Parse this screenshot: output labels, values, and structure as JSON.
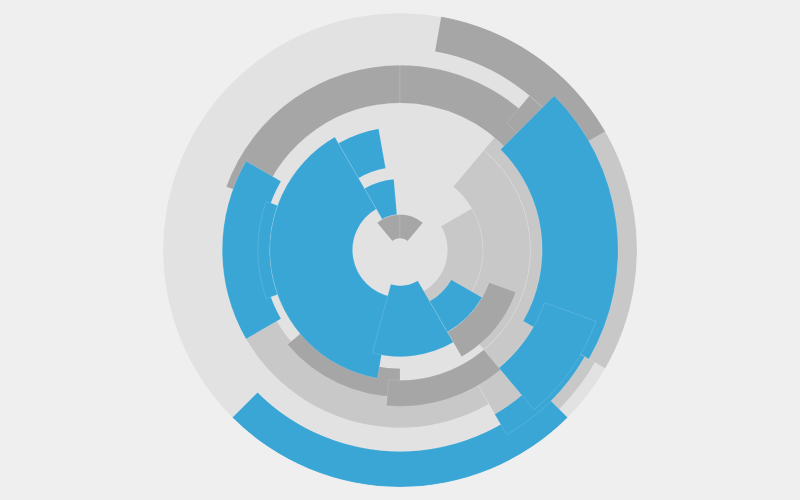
{
  "chart_data": {
    "type": "barpolar",
    "rlim": [
      0,
      1
    ],
    "tick_labels": false,
    "grid": false,
    "series": [
      {
        "color": "#e2e2e2",
        "arcs": [
          [
            0,
            1,
            0,
            360
          ]
        ]
      },
      {
        "color": "#c8c8c8",
        "arcs": [
          [
            0.55,
            0.95,
            40,
            150
          ],
          [
            0.6,
            0.75,
            150,
            260
          ],
          [
            0.35,
            0.55,
            40,
            140
          ],
          [
            0.9,
            1,
            40,
            120
          ],
          [
            0.2,
            0.35,
            60,
            160
          ]
        ]
      },
      {
        "color": "#a6a6a6",
        "arcs": [
          [
            0.62,
            0.78,
            290,
            360
          ],
          [
            0.62,
            0.78,
            0,
            50
          ],
          [
            0.85,
            1,
            10,
            60
          ],
          [
            0.7,
            0.85,
            40,
            70
          ],
          [
            0.5,
            0.62,
            180,
            230
          ],
          [
            0.55,
            0.66,
            140,
            185
          ],
          [
            0.05,
            0.15,
            320,
            360
          ],
          [
            0.05,
            0.15,
            0,
            40
          ],
          [
            0.4,
            0.52,
            110,
            150
          ]
        ]
      },
      {
        "color": "#3aa6d6",
        "arcs": [
          [
            0.85,
            1,
            135,
            225
          ],
          [
            0.8,
            0.9,
            120,
            150
          ],
          [
            0.6,
            0.92,
            45,
            120
          ],
          [
            0.65,
            0.88,
            110,
            140
          ],
          [
            0.2,
            0.55,
            190,
            330
          ],
          [
            0.15,
            0.45,
            150,
            195
          ],
          [
            0.35,
            0.52,
            330,
            350
          ],
          [
            0.58,
            0.75,
            240,
            300
          ],
          [
            0.55,
            0.6,
            250,
            290
          ],
          [
            0.25,
            0.4,
            120,
            150
          ],
          [
            0.15,
            0.3,
            330,
            355
          ]
        ]
      }
    ]
  }
}
